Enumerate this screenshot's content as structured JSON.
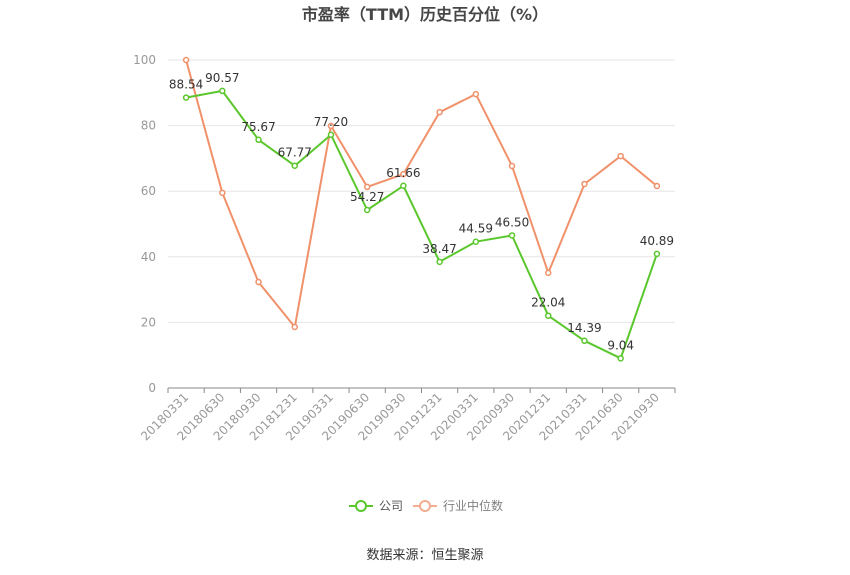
{
  "source": "数据来源：恒生聚源",
  "chart_data": {
    "type": "line",
    "title": "市盈率（TTM）历史百分位（%）",
    "categories": [
      "20180331",
      "20180630",
      "20180930",
      "20181231",
      "20190331",
      "20190630",
      "20190930",
      "20191231",
      "20200331",
      "20200930",
      "20201231",
      "20210331",
      "20210630",
      "20210930"
    ],
    "series": [
      {
        "name": "公司",
        "color": "#5ac72c",
        "show_labels": true,
        "values": [
          88.54,
          90.57,
          75.67,
          67.77,
          77.2,
          54.27,
          61.66,
          38.47,
          44.59,
          46.5,
          22.04,
          14.39,
          9.04,
          40.89
        ]
      },
      {
        "name": "行业中位数",
        "color": "#f0916a",
        "show_labels": false,
        "values": [
          100,
          59.5,
          32.3,
          18.6,
          79.9,
          61.3,
          65.2,
          84.1,
          89.6,
          67.7,
          35.1,
          62.2,
          70.7,
          61.6
        ]
      }
    ],
    "xlabel": "",
    "ylabel": "",
    "ylim": [
      0,
      100
    ],
    "yticks": [
      0,
      20,
      40,
      60,
      80,
      100
    ],
    "grid": "horizontal",
    "legend_position": "bottom"
  }
}
